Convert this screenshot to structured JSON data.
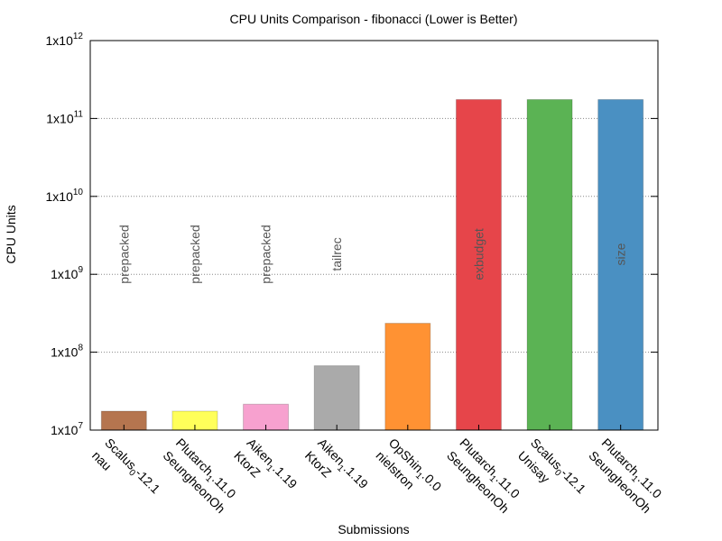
{
  "chart_data": {
    "type": "bar",
    "title": "CPU Units Comparison - fibonacci (Lower is Better)",
    "xlabel": "Submissions",
    "ylabel": "CPU Units",
    "yscale": "log",
    "ylim": [
      10000000,
      1000000000000
    ],
    "grid": "horizontal dotted",
    "yticks": [
      {
        "base": "1x10",
        "exp": "7"
      },
      {
        "base": "1x10",
        "exp": "8"
      },
      {
        "base": "1x10",
        "exp": "9"
      },
      {
        "base": "1x10",
        "exp": "10"
      },
      {
        "base": "1x10",
        "exp": "11"
      },
      {
        "base": "1x10",
        "exp": "12"
      }
    ],
    "bars": [
      {
        "name": "Scalus",
        "sub": "0",
        "version": "-12.1",
        "author": "nau",
        "value": 17500000,
        "color": "#b5754f",
        "annotation": "prepacked"
      },
      {
        "name": "Plutarch",
        "sub": "1",
        "version": ".11.0",
        "author": "SeungheonOh",
        "value": 17500000,
        "color": "#ffff5a",
        "annotation": "prepacked"
      },
      {
        "name": "Aiken",
        "sub": "1",
        "version": ".1.19",
        "author": "KtorZ",
        "value": 21500000,
        "color": "#f7a1cf",
        "annotation": "prepacked"
      },
      {
        "name": "Aiken",
        "sub": "1",
        "version": ".1.19",
        "author": "KtorZ",
        "value": 67000000,
        "color": "#aaaaaa",
        "annotation": "tailrec"
      },
      {
        "name": "OpShin",
        "sub": "1",
        "version": ".0.0",
        "author": "nielstron",
        "value": 235000000,
        "color": "#ff9233",
        "annotation": ""
      },
      {
        "name": "Plutarch",
        "sub": "1",
        "version": ".11.0",
        "author": "SeungheonOh",
        "value": 175000000000,
        "color": "#e6454a",
        "annotation": "exbudget"
      },
      {
        "name": "Scalus",
        "sub": "0",
        "version": "-12.1",
        "author": "Unisay",
        "value": 175000000000,
        "color": "#5bb354",
        "annotation": ""
      },
      {
        "name": "Plutarch",
        "sub": "1",
        "version": ".11.0",
        "author": "SeungheonOh",
        "value": 175000000000,
        "color": "#4a90c2",
        "annotation": "size"
      }
    ]
  }
}
